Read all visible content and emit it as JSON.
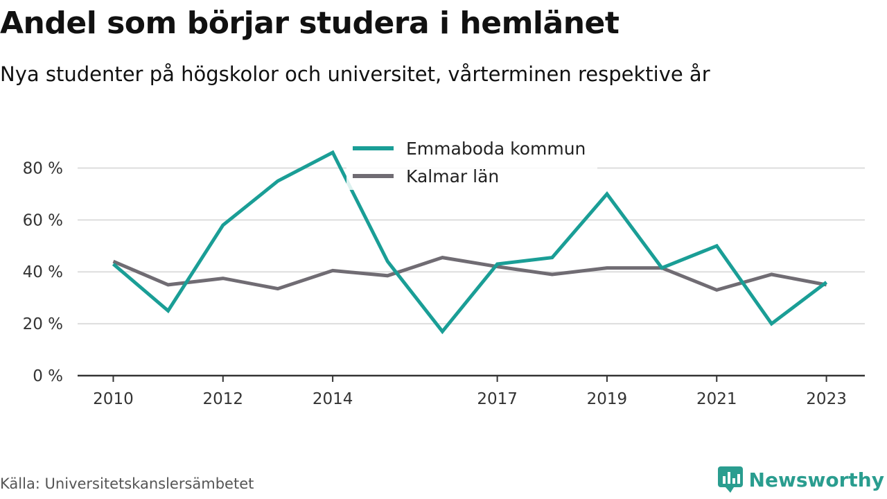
{
  "title": "Andel som börjar studera i hemlänet",
  "subtitle": "Nya studenter på högskolor och universitet, vårterminen respektive år",
  "source": "Källa: Universitetskanslersämbetet",
  "brand": {
    "name": "Newsworthy",
    "icon": "newsworthy-logo-icon",
    "color": "#2a9d8f"
  },
  "chart_data": {
    "type": "line",
    "title": "Andel som börjar studera i hemlänet",
    "subtitle": "Nya studenter på högskolor och universitet, vårterminen respektive år",
    "x": [
      2010,
      2011,
      2012,
      2013,
      2014,
      2015,
      2016,
      2017,
      2018,
      2019,
      2020,
      2021,
      2022,
      2023
    ],
    "xticks": [
      2010,
      2012,
      2014,
      2017,
      2019,
      2021,
      2023
    ],
    "xlim": [
      2009.35,
      2023.7
    ],
    "yticks": [
      0,
      20,
      40,
      60,
      80
    ],
    "ytick_labels": [
      "0 %",
      "20 %",
      "40 %",
      "60 %",
      "80 %"
    ],
    "ylim": [
      0,
      90
    ],
    "grid": true,
    "legend_position": "top-center",
    "series": [
      {
        "name": "Emmaboda kommun",
        "color": "#1a9e96",
        "values": [
          43,
          25,
          58,
          75,
          86,
          44,
          17,
          43,
          45.5,
          70,
          41.5,
          50,
          20,
          36
        ]
      },
      {
        "name": "Kalmar län",
        "color": "#706c73",
        "values": [
          44,
          35,
          37.5,
          33.5,
          40.5,
          38.5,
          45.5,
          42,
          39,
          41.5,
          41.5,
          33,
          39,
          35
        ]
      }
    ]
  }
}
